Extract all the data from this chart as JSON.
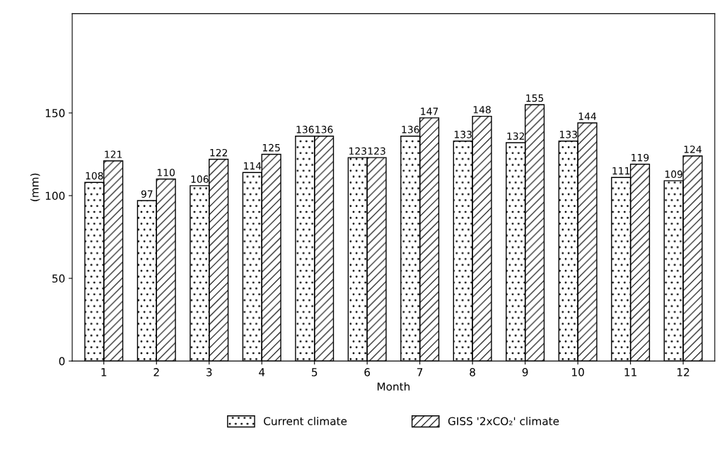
{
  "chart_data": {
    "type": "bar",
    "xlabel": "Month",
    "ylabel": "(mm)",
    "categories": [
      "1",
      "2",
      "3",
      "4",
      "5",
      "6",
      "7",
      "8",
      "9",
      "10",
      "11",
      "12"
    ],
    "series": [
      {
        "name": "Current climate",
        "color": "#000000",
        "values": [
          108,
          97,
          106,
          114,
          136,
          123,
          136,
          133,
          132,
          133,
          111,
          109
        ]
      },
      {
        "name": "GISS '2xCO₂' climate",
        "color": "#000000",
        "values": [
          121,
          110,
          122,
          125,
          136,
          123,
          147,
          148,
          155,
          144,
          119,
          124
        ]
      }
    ],
    "ylim": [
      0,
      210
    ],
    "yticks": [
      0,
      50,
      100,
      150
    ],
    "data_labels": true,
    "grid": false,
    "legend": "bottom"
  }
}
